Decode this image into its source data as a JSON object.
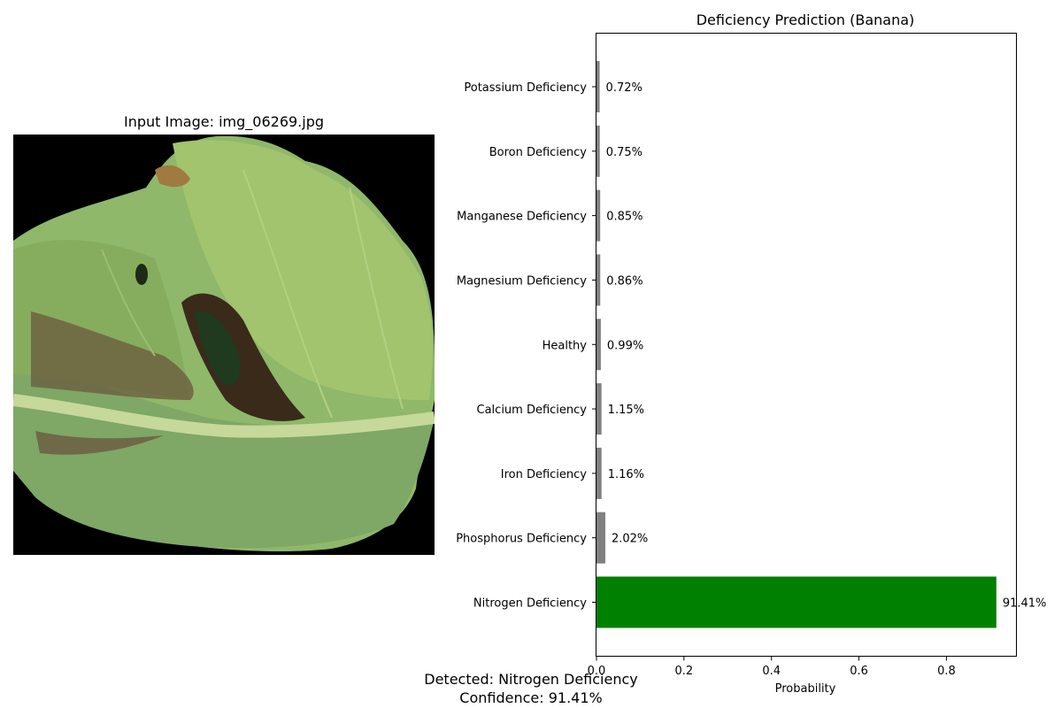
{
  "image_panel": {
    "title": "Input Image: img_06269.jpg",
    "image_description_icon": "banana-leaf-image"
  },
  "summary": {
    "detected": "Detected: Nitrogen Deficiency",
    "confidence": "Confidence: 91.41%"
  },
  "colors": {
    "top_bar": "#008000",
    "other_bars": "#808080"
  },
  "chart_data": {
    "type": "bar",
    "orientation": "horizontal",
    "title": "Deficiency Prediction (Banana)",
    "xlabel": "Probability",
    "ylabel": "",
    "xlim": [
      0,
      0.96
    ],
    "xticks": [
      0.0,
      0.2,
      0.4,
      0.6,
      0.8
    ],
    "xtick_labels": [
      "0.0",
      "0.2",
      "0.4",
      "0.6",
      "0.8"
    ],
    "grid": false,
    "categories": [
      "Nitrogen Deficiency",
      "Phosphorus Deficiency",
      "Iron Deficiency",
      "Calcium Deficiency",
      "Healthy",
      "Magnesium Deficiency",
      "Manganese Deficiency",
      "Boron Deficiency",
      "Potassium Deficiency"
    ],
    "values": [
      0.9141,
      0.0202,
      0.0116,
      0.0115,
      0.0099,
      0.0086,
      0.0085,
      0.0075,
      0.0072
    ],
    "value_labels": [
      "91.41%",
      "2.02%",
      "1.16%",
      "1.15%",
      "0.99%",
      "0.86%",
      "0.85%",
      "0.75%",
      "0.72%"
    ]
  }
}
